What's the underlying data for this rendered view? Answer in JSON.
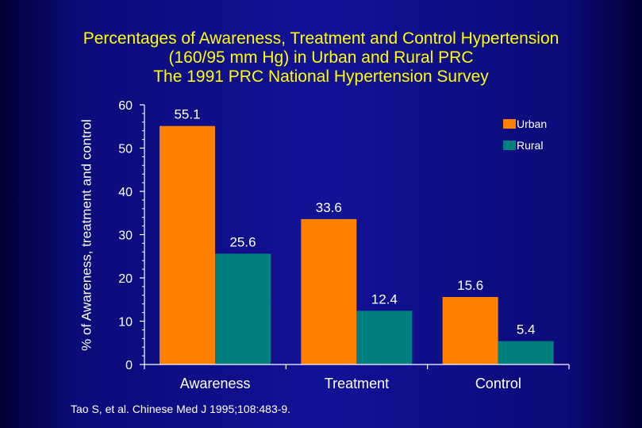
{
  "slide": {
    "title_lines": [
      "Percentages of Awareness, Treatment and Control Hypertension",
      "(160/95 mm Hg) in Urban and Rural PRC",
      "The 1991 PRC National Hypertension Survey"
    ],
    "source": "Tao S, et al. Chinese Med J 1995;108:483-9."
  },
  "colors": {
    "urban": "#ff7f00",
    "rural": "#007f7f",
    "text": "#ffffff",
    "title": "#ffff00",
    "axis": "#ffffff"
  },
  "chart_data": {
    "type": "bar",
    "title": "Percentages of Awareness, Treatment and Control Hypertension (160/95 mm Hg) in Urban and Rural PRC The 1991 PRC National Hypertension Survey",
    "xlabel": "",
    "ylabel": "% of Awareness, treatment and control",
    "categories": [
      "Awareness",
      "Treatment",
      "Control"
    ],
    "series": [
      {
        "name": "Urban",
        "values": [
          55.1,
          33.6,
          15.6
        ],
        "labels": [
          "55.1",
          "33.6",
          "15.6"
        ]
      },
      {
        "name": "Rural",
        "values": [
          25.6,
          12.4,
          5.4
        ],
        "labels": [
          "25.6",
          "12.4",
          "5.4"
        ]
      }
    ],
    "ylim": [
      0,
      60
    ],
    "yticks": [
      0,
      10,
      20,
      30,
      40,
      50,
      60
    ],
    "ytick_labels": [
      "0",
      "10",
      "20",
      "30",
      "40",
      "50",
      "60"
    ],
    "grid": false,
    "legend": {
      "position": "top-right",
      "entries": [
        "Urban",
        "Rural"
      ]
    }
  }
}
